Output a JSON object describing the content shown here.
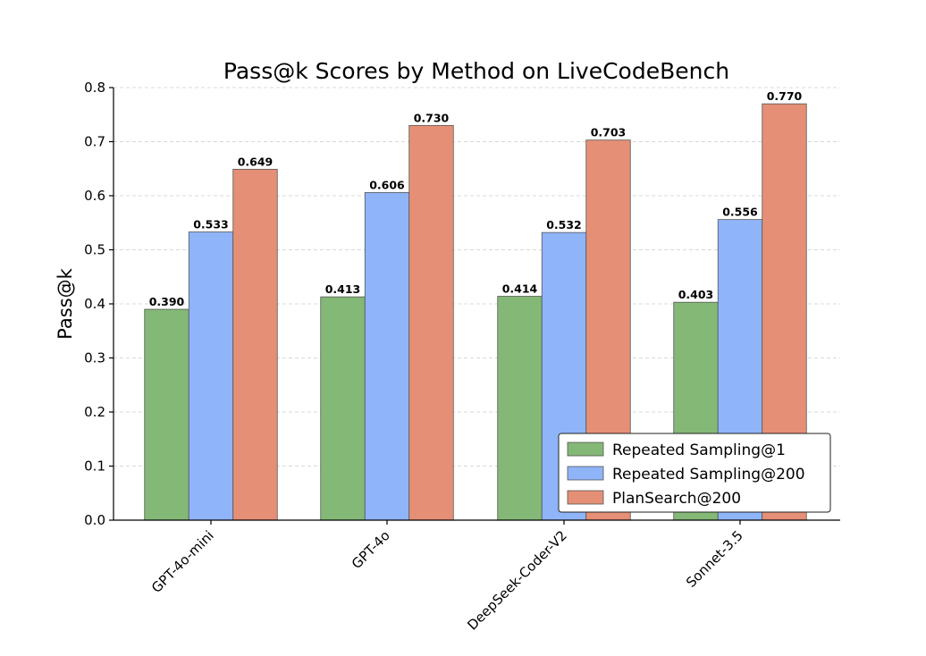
{
  "chart_data": {
    "type": "bar",
    "title": "Pass@k Scores by Method on LiveCodeBench",
    "xlabel": "",
    "ylabel": "Pass@k",
    "ylim": [
      0,
      0.8
    ],
    "yticks": [
      "0.0",
      "0.1",
      "0.2",
      "0.3",
      "0.4",
      "0.5",
      "0.6",
      "0.7",
      "0.8"
    ],
    "grid": "horizontal-dashed",
    "legend_position": "lower-right",
    "categories": [
      "GPT-4o-mini",
      "GPT-4o",
      "DeepSeek-Coder-V2",
      "Sonnet-3.5"
    ],
    "series": [
      {
        "name": "Repeated Sampling@1",
        "color": "#84b876",
        "values": [
          0.39,
          0.413,
          0.414,
          0.403
        ],
        "labels": [
          "0.390",
          "0.413",
          "0.414",
          "0.403"
        ]
      },
      {
        "name": "Repeated Sampling@200",
        "color": "#8fb4f8",
        "values": [
          0.533,
          0.606,
          0.532,
          0.556
        ],
        "labels": [
          "0.533",
          "0.606",
          "0.532",
          "0.556"
        ]
      },
      {
        "name": "PlanSearch@200",
        "color": "#e59076",
        "values": [
          0.649,
          0.73,
          0.703,
          0.77
        ],
        "labels": [
          "0.649",
          "0.730",
          "0.703",
          "0.770"
        ]
      }
    ]
  }
}
